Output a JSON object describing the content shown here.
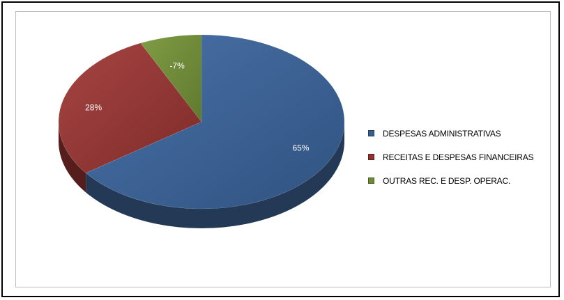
{
  "chart_data": {
    "type": "pie",
    "title": "",
    "labels": [
      "DESPESAS ADMINISTRATIVAS",
      "RECEITAS E DESPESAS FINANCEIRAS",
      "OUTRAS REC. E DESP. OPERAC."
    ],
    "values": [
      65,
      28,
      7
    ],
    "data_labels": [
      "65%",
      "28%",
      "-7%"
    ],
    "colors": [
      "#3a5f8f",
      "#8e3230",
      "#6f8a37"
    ],
    "style": "3d",
    "legend_position": "right"
  }
}
